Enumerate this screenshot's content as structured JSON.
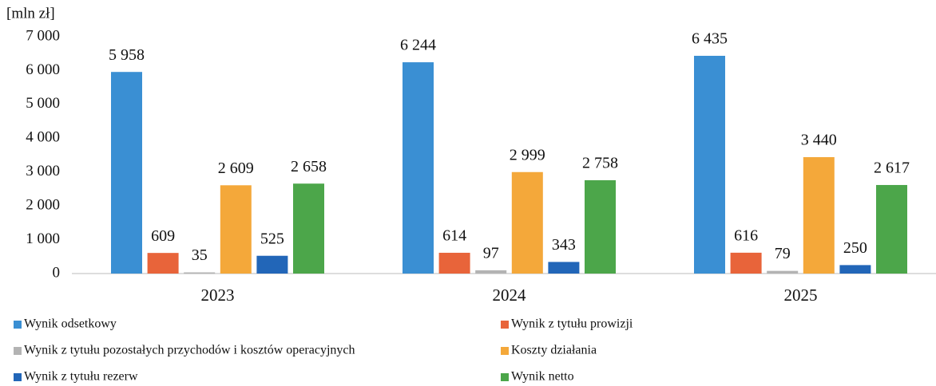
{
  "chart_data": {
    "type": "bar",
    "y_label": "[mln zł]",
    "categories": [
      "2023",
      "2024",
      "2025"
    ],
    "series": [
      {
        "name": "Wynik odsetkowy",
        "color": "#3a8fd3",
        "values": [
          5958,
          6244,
          6435
        ],
        "value_labels": [
          "5 958",
          "6 244",
          "6 435"
        ]
      },
      {
        "name": "Wynik z tytułu prowizji",
        "color": "#e8643a",
        "values": [
          609,
          614,
          616
        ]
      },
      {
        "name": "Wynik z tytułu pozostałych przychodów i kosztów operacyjnych",
        "color": "#b3b3b3",
        "values": [
          35,
          97,
          79
        ]
      },
      {
        "name": "Koszty działania",
        "color": "#f4a83a",
        "values": [
          2609,
          2999,
          3440
        ],
        "value_labels": [
          "2 609",
          "2 999",
          "3 440"
        ]
      },
      {
        "name": "Wynik z tytułu rezerw",
        "color": "#2266b8",
        "values": [
          525,
          343,
          250
        ]
      },
      {
        "name": "Wynik netto",
        "color": "#4ca64a",
        "values": [
          2658,
          2758,
          2617
        ],
        "value_labels": [
          "2 658",
          "2 758",
          "2 617"
        ]
      }
    ],
    "ylim": [
      0,
      7000
    ],
    "yticks": [
      0,
      {
        "value": 1000,
        "label": "1 000"
      },
      {
        "value": 2000,
        "label": "2 000"
      },
      {
        "value": 3000,
        "label": "3 000"
      },
      {
        "value": 4000,
        "label": "4 000"
      },
      {
        "value": 5000,
        "label": "5 000"
      },
      {
        "value": 6000,
        "label": "6 000"
      },
      {
        "value": 7000,
        "label": "7 000"
      }
    ],
    "grid": false,
    "legend": "bottom"
  }
}
